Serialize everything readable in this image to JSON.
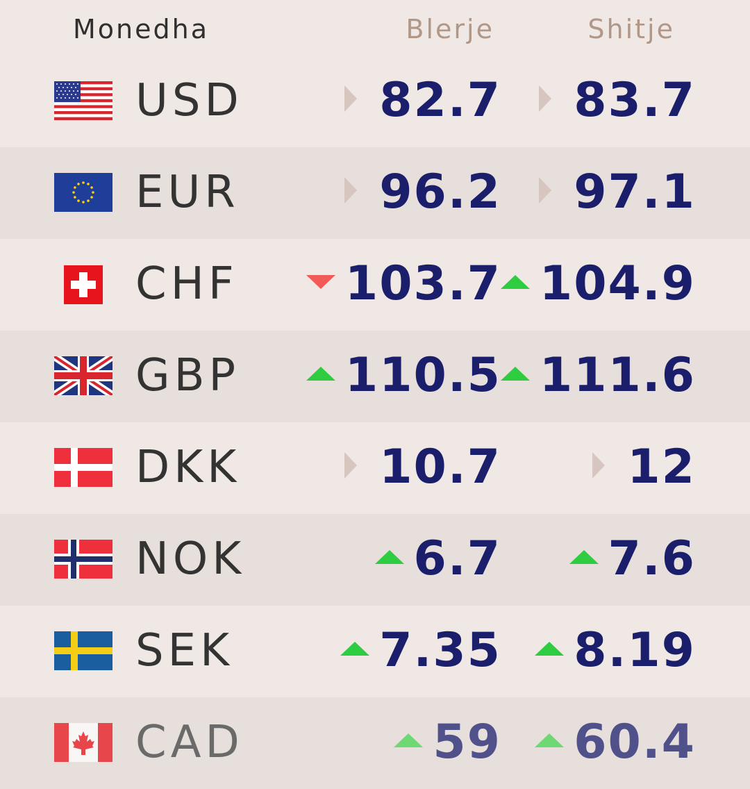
{
  "header": {
    "currency": "Monedha",
    "buy": "Blerje",
    "sell": "Shitje"
  },
  "colors": {
    "background": "#efe8e5",
    "row_alt": "#e7dfdb",
    "value_text": "#1b1f6b",
    "header_accent": "#b09787",
    "up": "#2ecc40",
    "down": "#f25a57",
    "flat": "#d6c6bf"
  },
  "rates": [
    {
      "code": "USD",
      "flag": "us-flag-icon",
      "buy": "82.7",
      "buy_trend": "flat",
      "sell": "83.7",
      "sell_trend": "flat"
    },
    {
      "code": "EUR",
      "flag": "eu-flag-icon",
      "buy": "96.2",
      "buy_trend": "flat",
      "sell": "97.1",
      "sell_trend": "flat"
    },
    {
      "code": "CHF",
      "flag": "ch-flag-icon",
      "buy": "103.7",
      "buy_trend": "down",
      "sell": "104.9",
      "sell_trend": "up"
    },
    {
      "code": "GBP",
      "flag": "gb-flag-icon",
      "buy": "110.5",
      "buy_trend": "up",
      "sell": "111.6",
      "sell_trend": "up"
    },
    {
      "code": "DKK",
      "flag": "dk-flag-icon",
      "buy": "10.7",
      "buy_trend": "flat",
      "sell": "12",
      "sell_trend": "flat"
    },
    {
      "code": "NOK",
      "flag": "no-flag-icon",
      "buy": "6.7",
      "buy_trend": "up",
      "sell": "7.6",
      "sell_trend": "up"
    },
    {
      "code": "SEK",
      "flag": "se-flag-icon",
      "buy": "7.35",
      "buy_trend": "up",
      "sell": "8.19",
      "sell_trend": "up"
    },
    {
      "code": "CAD",
      "flag": "ca-flag-icon",
      "buy": "59",
      "buy_trend": "up",
      "sell": "60.4",
      "sell_trend": "up"
    }
  ]
}
